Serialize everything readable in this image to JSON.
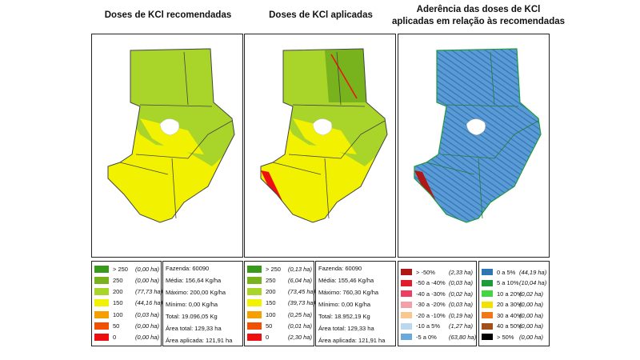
{
  "titles": {
    "left": "Doses de KCl recomendadas",
    "middle": "Doses de KCl aplicadas",
    "right_line1": "Aderência das doses de KCl",
    "right_line2": "aplicadas em relação às recomendadas"
  },
  "colors": {
    "dose_gt250": "#3a9a1e",
    "dose_250": "#78b21c",
    "dose_200": "#a9d42a",
    "dose_150": "#f2f200",
    "dose_100": "#f5a000",
    "dose_50": "#f05000",
    "dose_0": "#ee1010",
    "adherence_base": "#5b9bd5",
    "adherence_dark": "#2e75b6",
    "hole": "#ffffff",
    "border": "#444444"
  },
  "legend_recommended": [
    {
      "label": "> 250",
      "ha": "(0,00 ha)",
      "color": "#3a9a1e"
    },
    {
      "label": "250",
      "ha": "(0,00 ha)",
      "color": "#78b21c"
    },
    {
      "label": "200",
      "ha": "(77,73 ha)",
      "color": "#a9d42a"
    },
    {
      "label": "150",
      "ha": "(44,16 ha)",
      "color": "#f2f200"
    },
    {
      "label": "100",
      "ha": "(0,03 ha)",
      "color": "#f5a000"
    },
    {
      "label": "50",
      "ha": "(0,00 ha)",
      "color": "#f05000"
    },
    {
      "label": "0",
      "ha": "(0,00 ha)",
      "color": "#ee1010"
    }
  ],
  "stats_recommended": [
    "Fazenda: 60090",
    "Média: 156,64 Kg/ha",
    "Máximo: 200,00 Kg/ha",
    "Mínimo: 0,00 Kg/ha",
    "Total: 19.096,05 Kg",
    "Área total: 129,33 ha",
    "Área aplicada: 121,91 ha"
  ],
  "legend_applied": [
    {
      "label": "> 250",
      "ha": "(0,13 ha)",
      "color": "#3a9a1e"
    },
    {
      "label": "250",
      "ha": "(6,04 ha)",
      "color": "#78b21c"
    },
    {
      "label": "200",
      "ha": "(73,45 ha)",
      "color": "#a9d42a"
    },
    {
      "label": "150",
      "ha": "(39,73 ha)",
      "color": "#f2f200"
    },
    {
      "label": "100",
      "ha": "(0,25 ha)",
      "color": "#f5a000"
    },
    {
      "label": "50",
      "ha": "(0,01 ha)",
      "color": "#f05000"
    },
    {
      "label": "0",
      "ha": "(2,30 ha)",
      "color": "#ee1010"
    }
  ],
  "stats_applied": [
    "Fazenda: 60090",
    "Média: 155,46 Kg/ha",
    "Máximo: 760,30 Kg/ha",
    "Mínimo: 0,00 Kg/ha",
    "Total: 18.952,19 Kg",
    "Área total: 129,33 ha",
    "Área aplicada: 121,91 ha"
  ],
  "legend_adherence_negative": [
    {
      "label": "> -50%",
      "ha": "(2,33 ha)",
      "color": "#b01818"
    },
    {
      "label": "-50 a -40%",
      "ha": "(0,03 ha)",
      "color": "#e01c2c"
    },
    {
      "label": "-40 a -30%",
      "ha": "(0,02 ha)",
      "color": "#ee3c64"
    },
    {
      "label": "-30 a -20%",
      "ha": "(0,03 ha)",
      "color": "#f4a0a8"
    },
    {
      "label": "-20 a -10%",
      "ha": "(0,19 ha)",
      "color": "#f8c890"
    },
    {
      "label": "-10 a 5%",
      "ha": "(1,27 ha)",
      "color": "#bcd8ee"
    },
    {
      "label": "-5 a 0%",
      "ha": "(63,80 ha)",
      "color": "#6aa8e0"
    }
  ],
  "legend_adherence_positive": [
    {
      "label": "0 a 5%",
      "ha": "(44,19 ha)",
      "color": "#2e75b6"
    },
    {
      "label": "5 a 10%",
      "ha": "(10,04 ha)",
      "color": "#1f9a3c"
    },
    {
      "label": "10 a 20%",
      "ha": "(0,02 ha)",
      "color": "#44d444"
    },
    {
      "label": "20 a 30%",
      "ha": "(0,00 ha)",
      "color": "#f2e200"
    },
    {
      "label": "30 a 40%",
      "ha": "(0,00 ha)",
      "color": "#f07818"
    },
    {
      "label": "40 a 50%",
      "ha": "(0,00 ha)",
      "color": "#a05018"
    },
    {
      "label": "> 50%",
      "ha": "(0,00 ha)",
      "color": "#000000"
    }
  ]
}
